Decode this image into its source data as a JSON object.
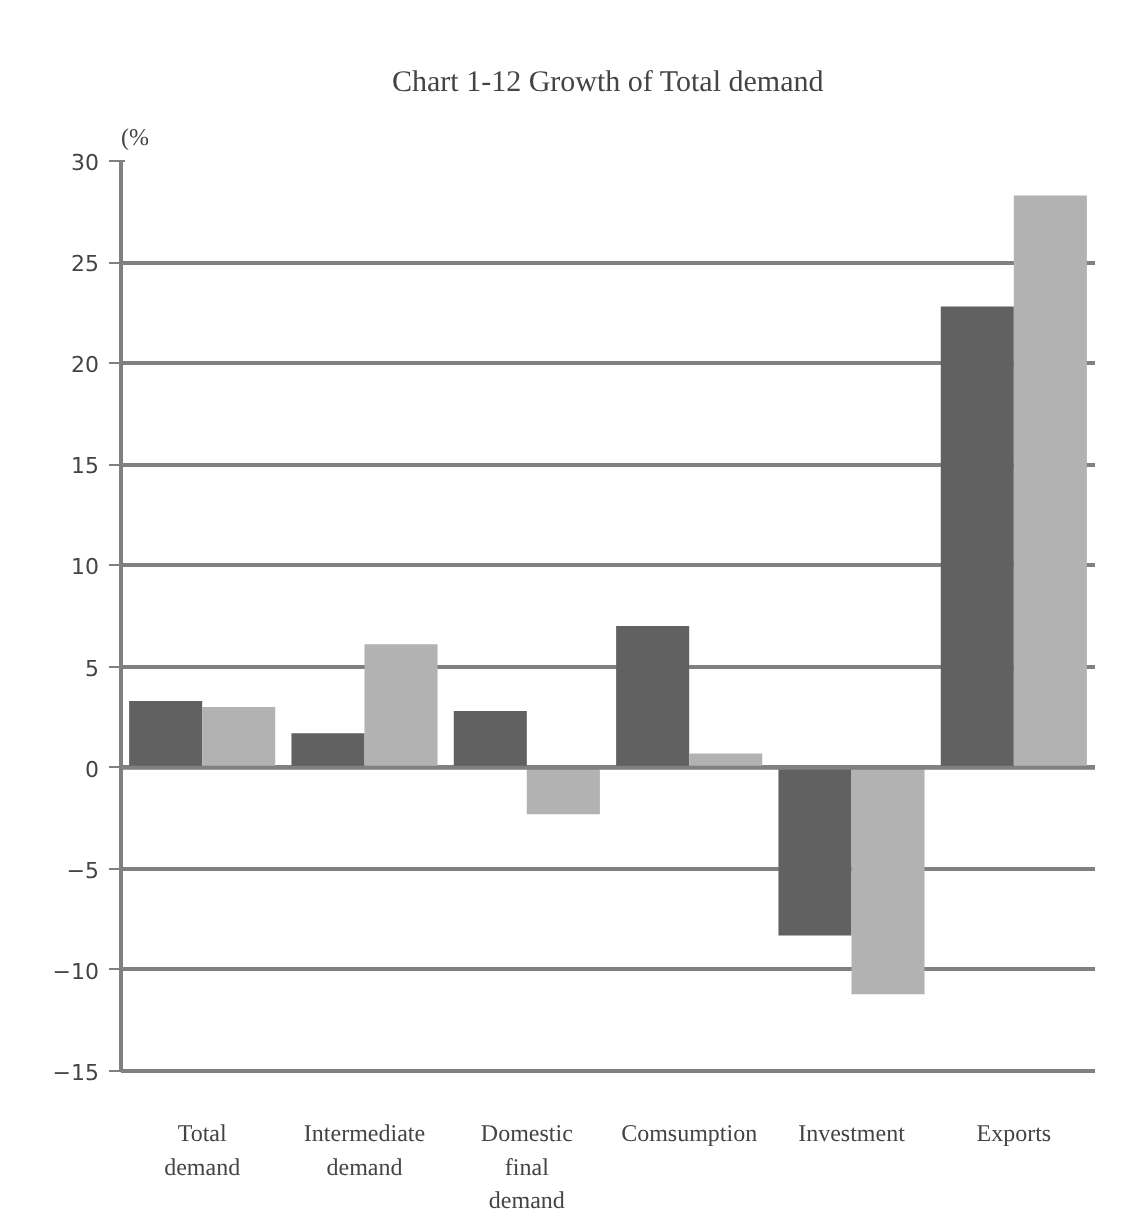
{
  "chart_data": {
    "type": "bar",
    "title": "Chart 1-12 Growth of Total demand",
    "ylabel": "(%",
    "categories": [
      "Total demand",
      "Intermediate demand",
      "Domestic final demand",
      "Comsumption",
      "Investment",
      "Exports"
    ],
    "series": [
      {
        "color": "#616161",
        "values": [
          3.3,
          1.7,
          2.8,
          7.0,
          -8.3,
          22.8
        ]
      },
      {
        "color": "#b2b2b2",
        "values": [
          3.0,
          6.1,
          -2.3,
          0.7,
          -11.2,
          28.3
        ]
      }
    ],
    "ylim": [
      -15,
      30
    ],
    "yticks": [
      -15,
      -10,
      -5,
      0,
      5,
      10,
      15,
      20,
      25,
      30
    ],
    "grid": "y"
  }
}
